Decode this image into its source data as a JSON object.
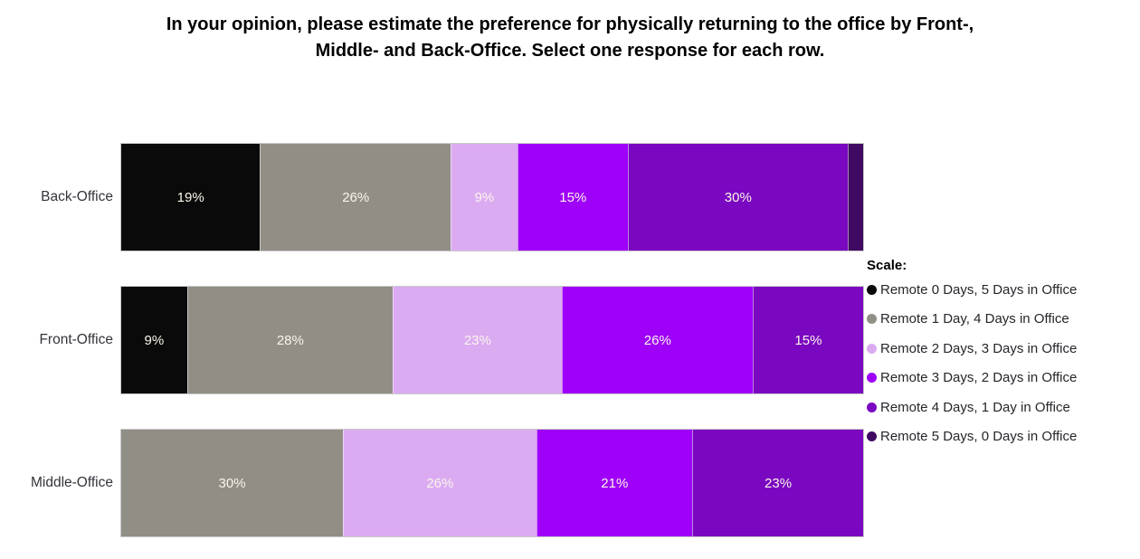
{
  "chart_data": {
    "type": "bar",
    "orientation": "horizontal_stacked",
    "title": "In your opinion, please estimate the preference for physically returning to the office by Front-, Middle- and Back-Office. Select one response for each row.",
    "title_lines": [
      "In your opinion, please estimate the preference for physically returning to the office by Front-,",
      "Middle- and Back-Office. Select one response for each row."
    ],
    "categories": [
      "Back-Office",
      "Front-Office",
      "Middle-Office"
    ],
    "legend_title": "Scale:",
    "legend_position": "right",
    "value_suffix": "%",
    "label_min_value": 5,
    "axis_range": [
      0,
      100
    ],
    "grid": false,
    "series": [
      {
        "name": "Remote 0 Days, 5 Days in Office",
        "color": "#0a0a0a",
        "values": [
          19,
          9,
          0
        ]
      },
      {
        "name": "Remote 1 Day, 4 Days in Office",
        "color": "#918e86",
        "values": [
          26,
          28,
          30
        ]
      },
      {
        "name": "Remote 2 Days, 3 Days in Office",
        "color": "#dbabf2",
        "values": [
          9,
          23,
          26
        ]
      },
      {
        "name": "Remote 3 Days, 2 Days in Office",
        "color": "#9e00f8",
        "values": [
          15,
          26,
          21
        ]
      },
      {
        "name": "Remote 4 Days, 1 Day in Office",
        "color": "#7a08c0",
        "values": [
          30,
          15,
          23
        ]
      },
      {
        "name": "Remote 5 Days, 0 Days in Office",
        "color": "#400a62",
        "values": [
          2,
          0,
          0
        ]
      }
    ]
  }
}
